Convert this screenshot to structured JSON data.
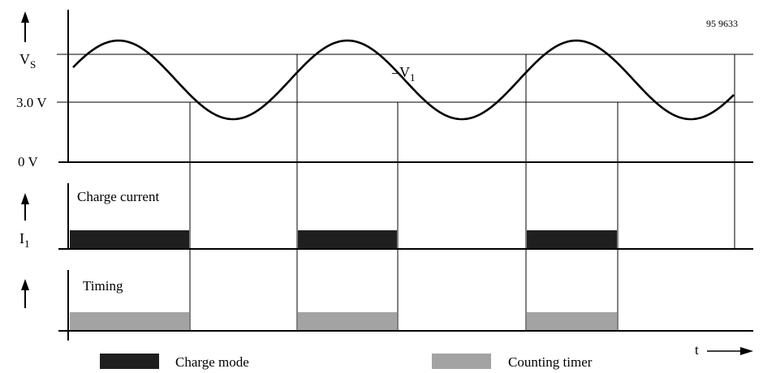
{
  "figure_id": "95 9633",
  "voltage_panel": {
    "vs_label": "V",
    "vs_sub": "S",
    "v3_label": "3.0 V",
    "v0_label": "0 V",
    "signal_prefix": "–V",
    "signal_sub": "1"
  },
  "current_panel": {
    "title": "Charge current",
    "axis_label": "I",
    "axis_sub": "1"
  },
  "timing_panel": {
    "title": "Timing"
  },
  "time_axis": {
    "label": "t"
  },
  "legend": {
    "charge_mode": "Charge mode",
    "counting_timer": "Counting timer"
  },
  "colors": {
    "charge_bar": "#1f1f1f",
    "timer_bar": "#a3a3a3",
    "line": "#000000"
  }
}
